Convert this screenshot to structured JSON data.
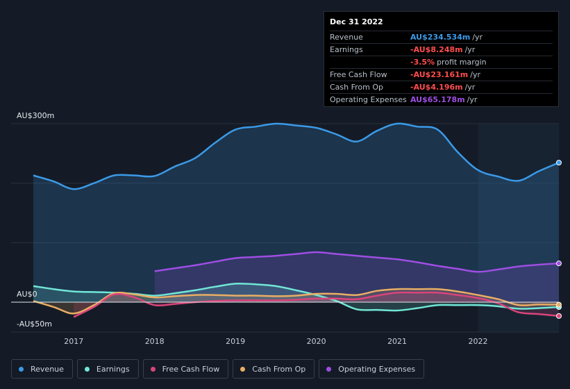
{
  "colors": {
    "revenue": "#3b9ae8",
    "earnings": "#71e7d6",
    "free_cash_flow": "#d9457a",
    "cash_from_op": "#e9ae64",
    "operating_expenses": "#9f4ee3",
    "negative": "#ff4d4d"
  },
  "tooltip": {
    "date": "Dec 31 2022",
    "rows": [
      {
        "label": "Revenue",
        "value": "AU$234.534m",
        "unit": "/yr",
        "color": "#3b9ae8"
      },
      {
        "label": "Earnings",
        "value": "-AU$8.248m",
        "unit": "/yr",
        "color": "#ff4d4d"
      },
      {
        "label": "",
        "value": "-3.5%",
        "unit": "profit margin",
        "color": "#ff4d4d"
      },
      {
        "label": "Free Cash Flow",
        "value": "-AU$23.161m",
        "unit": "/yr",
        "color": "#ff4d4d"
      },
      {
        "label": "Cash From Op",
        "value": "-AU$4.196m",
        "unit": "/yr",
        "color": "#ff4d4d"
      },
      {
        "label": "Operating Expenses",
        "value": "AU$65.178m",
        "unit": "/yr",
        "color": "#9f4ee3"
      }
    ]
  },
  "legend": [
    {
      "label": "Revenue",
      "color": "#3b9ae8"
    },
    {
      "label": "Earnings",
      "color": "#71e7d6"
    },
    {
      "label": "Free Cash Flow",
      "color": "#d9457a"
    },
    {
      "label": "Cash From Op",
      "color": "#e9ae64"
    },
    {
      "label": "Operating Expenses",
      "color": "#9f4ee3"
    }
  ],
  "chart_data": {
    "type": "area",
    "ylim": [
      -50,
      300
    ],
    "y_tick_labels": [
      {
        "value": 300,
        "label": "AU$300m"
      },
      {
        "value": 0,
        "label": "AU$0"
      },
      {
        "value": -50,
        "label": "-AU$50m"
      }
    ],
    "y_gridlines": [
      300,
      200,
      100,
      0
    ],
    "xlim": [
      2016.5,
      2023.0
    ],
    "x_ticks": [
      2017,
      2018,
      2019,
      2020,
      2021,
      2022
    ],
    "x_tick_labels": [
      "2017",
      "2018",
      "2019",
      "2020",
      "2021",
      "2022"
    ],
    "highlight_from": 2022.0,
    "series": [
      {
        "name": "Revenue",
        "key": "revenue",
        "fill": true,
        "points": [
          [
            2016.5,
            213
          ],
          [
            2016.75,
            203
          ],
          [
            2017.0,
            190
          ],
          [
            2017.25,
            200
          ],
          [
            2017.5,
            213
          ],
          [
            2017.75,
            213
          ],
          [
            2018.0,
            212
          ],
          [
            2018.25,
            228
          ],
          [
            2018.5,
            242
          ],
          [
            2018.75,
            268
          ],
          [
            2019.0,
            290
          ],
          [
            2019.25,
            295
          ],
          [
            2019.5,
            300
          ],
          [
            2019.75,
            297
          ],
          [
            2020.0,
            293
          ],
          [
            2020.25,
            282
          ],
          [
            2020.5,
            270
          ],
          [
            2020.75,
            288
          ],
          [
            2021.0,
            300
          ],
          [
            2021.25,
            295
          ],
          [
            2021.5,
            290
          ],
          [
            2021.75,
            252
          ],
          [
            2022.0,
            222
          ],
          [
            2022.25,
            211
          ],
          [
            2022.5,
            204
          ],
          [
            2022.75,
            220
          ],
          [
            2023.0,
            234.5
          ]
        ]
      },
      {
        "name": "Operating Expenses",
        "key": "operating_expenses",
        "fill": true,
        "points": [
          [
            2018.0,
            52
          ],
          [
            2018.25,
            57
          ],
          [
            2018.5,
            62
          ],
          [
            2018.75,
            68
          ],
          [
            2019.0,
            74
          ],
          [
            2019.25,
            76
          ],
          [
            2019.5,
            78
          ],
          [
            2019.75,
            81
          ],
          [
            2020.0,
            84
          ],
          [
            2020.25,
            81
          ],
          [
            2020.5,
            78
          ],
          [
            2020.75,
            75
          ],
          [
            2021.0,
            72
          ],
          [
            2021.25,
            67
          ],
          [
            2021.5,
            61
          ],
          [
            2021.75,
            56
          ],
          [
            2022.0,
            51
          ],
          [
            2022.25,
            55
          ],
          [
            2022.5,
            60
          ],
          [
            2022.75,
            63
          ],
          [
            2023.0,
            65.2
          ]
        ]
      },
      {
        "name": "Earnings",
        "key": "earnings",
        "fill": true,
        "points": [
          [
            2016.5,
            27
          ],
          [
            2016.75,
            22
          ],
          [
            2017.0,
            18
          ],
          [
            2017.25,
            17
          ],
          [
            2017.5,
            16
          ],
          [
            2017.75,
            14
          ],
          [
            2018.0,
            11
          ],
          [
            2018.25,
            15
          ],
          [
            2018.5,
            20
          ],
          [
            2018.75,
            26
          ],
          [
            2019.0,
            31
          ],
          [
            2019.25,
            30
          ],
          [
            2019.5,
            27
          ],
          [
            2019.75,
            20
          ],
          [
            2020.0,
            12
          ],
          [
            2020.25,
            2
          ],
          [
            2020.5,
            -12
          ],
          [
            2020.75,
            -13
          ],
          [
            2021.0,
            -14
          ],
          [
            2021.25,
            -10
          ],
          [
            2021.5,
            -5
          ],
          [
            2021.75,
            -5
          ],
          [
            2022.0,
            -5
          ],
          [
            2022.25,
            -7
          ],
          [
            2022.5,
            -11
          ],
          [
            2022.75,
            -10
          ],
          [
            2023.0,
            -8.2
          ]
        ]
      },
      {
        "name": "Cash From Op",
        "key": "cash_from_op",
        "fill": true,
        "points": [
          [
            2016.5,
            2
          ],
          [
            2016.75,
            -8
          ],
          [
            2017.0,
            -19
          ],
          [
            2017.25,
            -5
          ],
          [
            2017.5,
            15
          ],
          [
            2017.75,
            13
          ],
          [
            2018.0,
            8
          ],
          [
            2018.25,
            10
          ],
          [
            2018.5,
            12
          ],
          [
            2018.75,
            12
          ],
          [
            2019.0,
            11
          ],
          [
            2019.25,
            11
          ],
          [
            2019.5,
            10
          ],
          [
            2019.75,
            11
          ],
          [
            2020.0,
            14
          ],
          [
            2020.25,
            14
          ],
          [
            2020.5,
            12
          ],
          [
            2020.75,
            19
          ],
          [
            2021.0,
            22
          ],
          [
            2021.25,
            22
          ],
          [
            2021.5,
            22
          ],
          [
            2021.75,
            18
          ],
          [
            2022.0,
            12
          ],
          [
            2022.25,
            5
          ],
          [
            2022.5,
            -5
          ],
          [
            2022.75,
            -4
          ],
          [
            2023.0,
            -4.2
          ]
        ]
      },
      {
        "name": "Free Cash Flow",
        "key": "free_cash_flow",
        "fill": true,
        "points": [
          [
            2017.0,
            -25
          ],
          [
            2017.25,
            -8
          ],
          [
            2017.5,
            13
          ],
          [
            2017.75,
            8
          ],
          [
            2018.0,
            -5
          ],
          [
            2018.25,
            -3
          ],
          [
            2018.5,
            0
          ],
          [
            2018.75,
            2
          ],
          [
            2019.0,
            3
          ],
          [
            2019.25,
            3
          ],
          [
            2019.5,
            3
          ],
          [
            2019.75,
            4
          ],
          [
            2020.0,
            6
          ],
          [
            2020.25,
            6
          ],
          [
            2020.5,
            5
          ],
          [
            2020.75,
            11
          ],
          [
            2021.0,
            16
          ],
          [
            2021.25,
            16
          ],
          [
            2021.5,
            16
          ],
          [
            2021.75,
            12
          ],
          [
            2022.0,
            7
          ],
          [
            2022.25,
            -2
          ],
          [
            2022.5,
            -17
          ],
          [
            2022.75,
            -20
          ],
          [
            2023.0,
            -23.2
          ]
        ]
      }
    ]
  }
}
